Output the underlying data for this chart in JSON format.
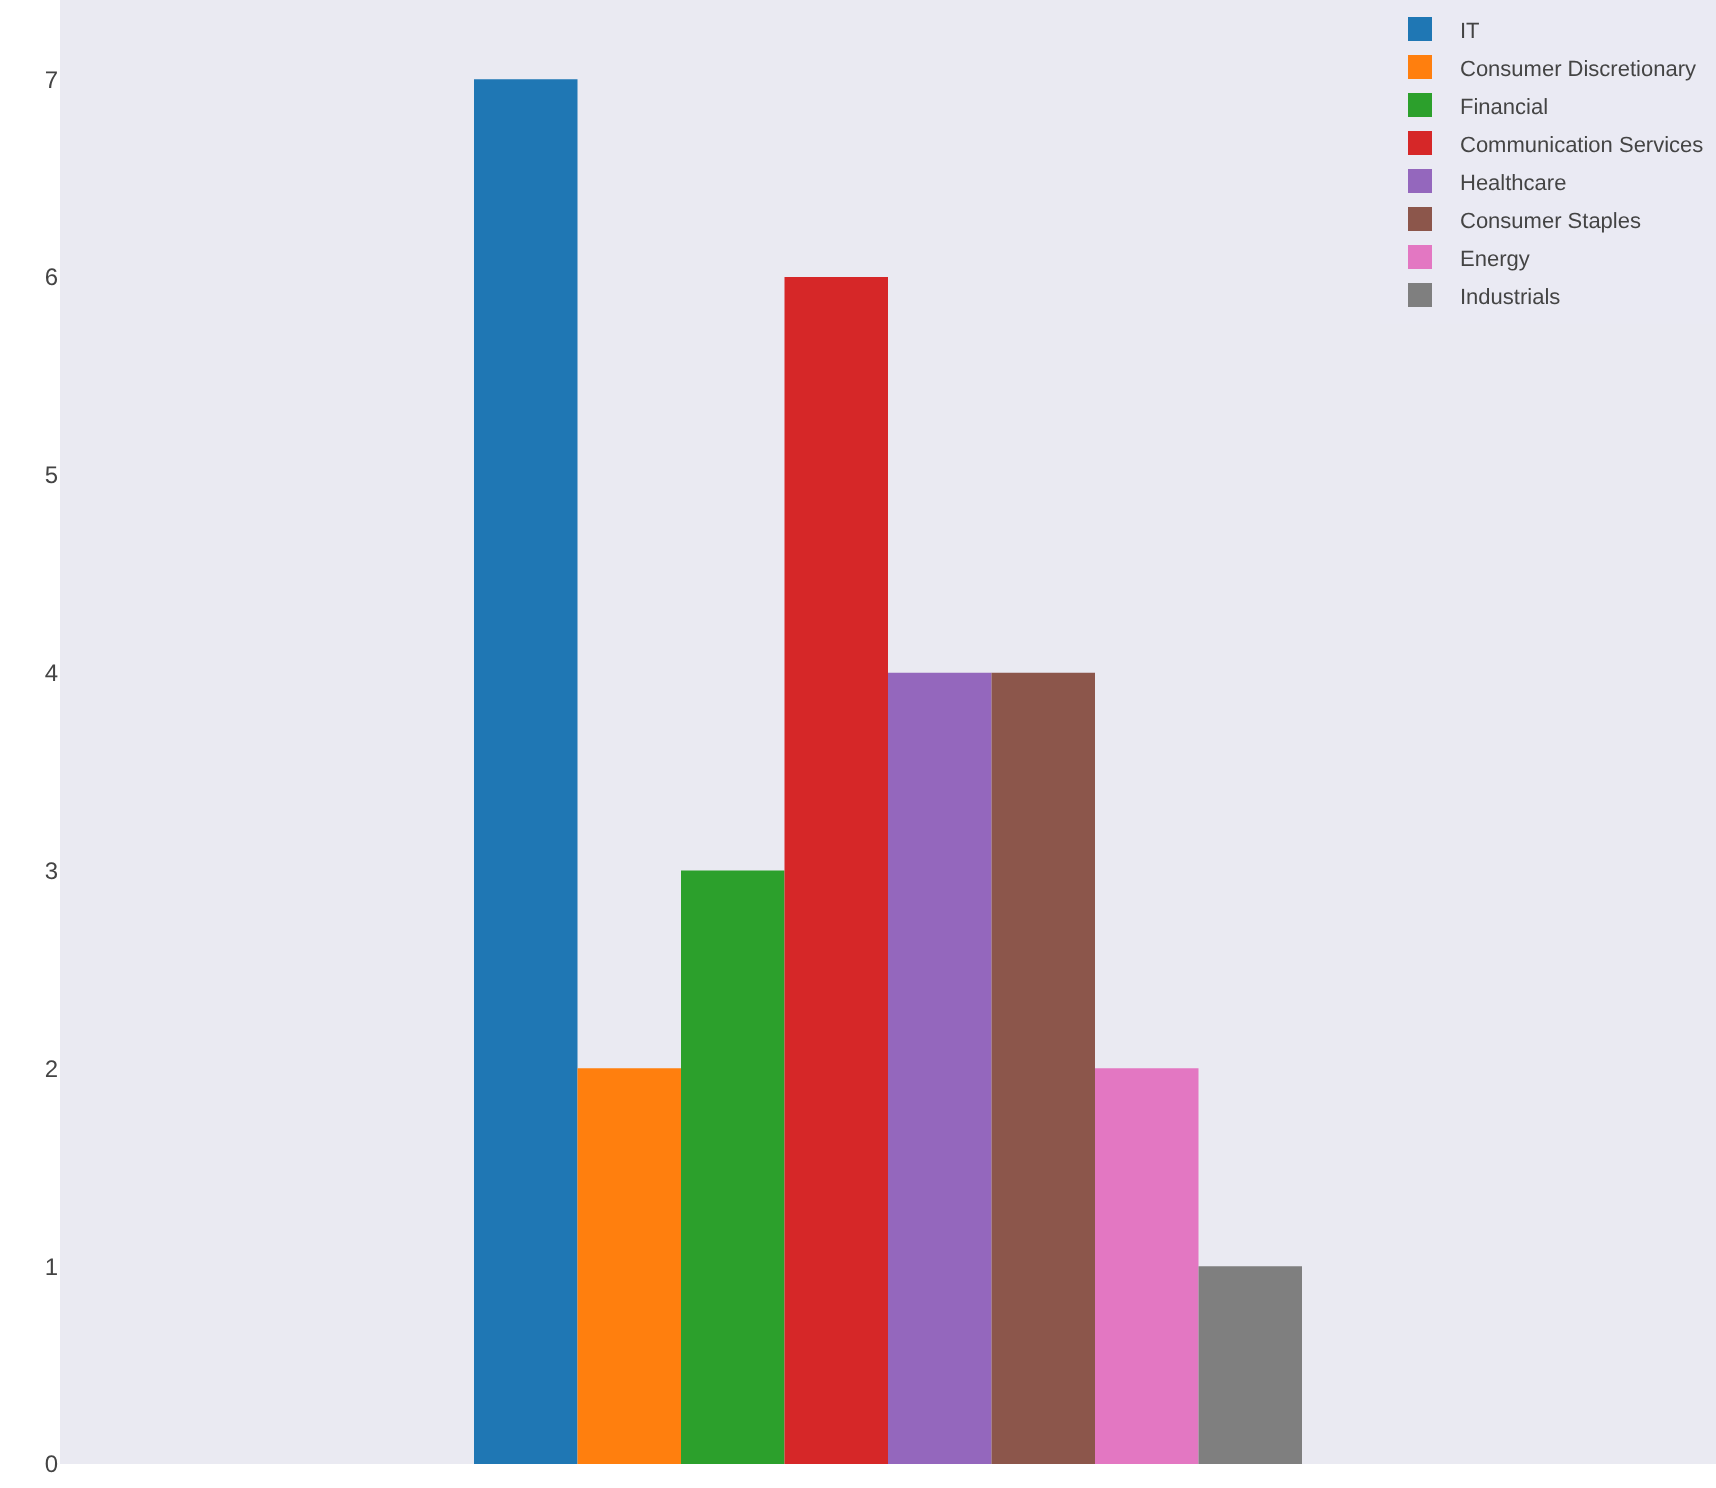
{
  "chart_data": {
    "type": "bar",
    "categories": [
      null
    ],
    "series": [
      {
        "name": "IT",
        "color": "#1f77b4",
        "values": [
          7
        ]
      },
      {
        "name": "Consumer Discretionary",
        "color": "#ff7f0e",
        "values": [
          2
        ]
      },
      {
        "name": "Financial",
        "color": "#2ca02c",
        "values": [
          3
        ]
      },
      {
        "name": "Communication Services",
        "color": "#d62728",
        "values": [
          6
        ]
      },
      {
        "name": "Healthcare",
        "color": "#9467bd",
        "values": [
          4
        ]
      },
      {
        "name": "Consumer Staples",
        "color": "#8c564b",
        "values": [
          4
        ]
      },
      {
        "name": "Energy",
        "color": "#e377c2",
        "values": [
          2
        ]
      },
      {
        "name": "Industrials",
        "color": "#7f7f7f",
        "values": [
          1
        ]
      }
    ],
    "ylim": [
      0,
      7.4
    ],
    "yticks": [
      0,
      1,
      2,
      3,
      4,
      5,
      6,
      7
    ],
    "legend": "top right",
    "tick_labels": "y",
    "grid": false
  }
}
